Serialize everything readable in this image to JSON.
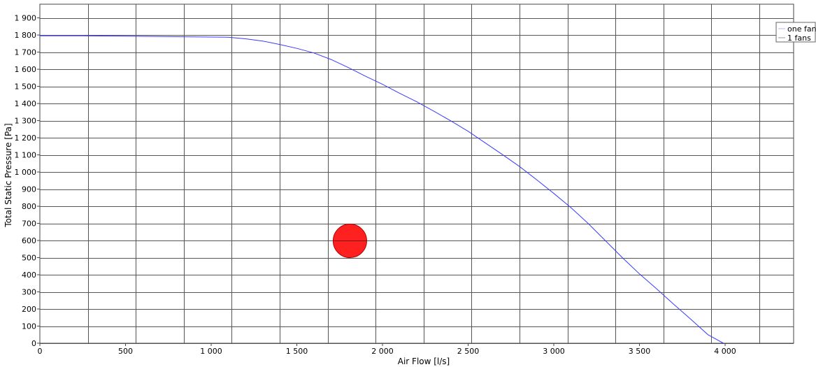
{
  "chart_data": {
    "type": "line",
    "xlabel": "Air Flow [l/s]",
    "ylabel": "Total Static Pressure [Pa]",
    "xlim": [
      0,
      4400
    ],
    "ylim": [
      0,
      1980
    ],
    "x_tick_values": [
      0,
      500,
      1000,
      1500,
      2000,
      2500,
      3000,
      3500,
      4000
    ],
    "x_tick_labels": [
      "0",
      "500",
      "1 000",
      "1 500",
      "2 000",
      "2 500",
      "3 000",
      "3 500",
      "4 000"
    ],
    "y_tick_values": [
      0,
      100,
      200,
      300,
      400,
      500,
      600,
      700,
      800,
      900,
      1000,
      1100,
      1200,
      1300,
      1400,
      1500,
      1600,
      1700,
      1800,
      1900
    ],
    "y_tick_labels": [
      "0",
      "100",
      "200",
      "300",
      "400",
      "500",
      "600",
      "700",
      "800",
      "900",
      "1 000",
      "1 100",
      "1 200",
      "1 300",
      "1 400",
      "1 500",
      "1 600",
      "1 700",
      "1 800",
      "1 900"
    ],
    "x_grid_lines": [
      280,
      560,
      840,
      1120,
      1400,
      1680,
      1960,
      2240,
      2520,
      2800,
      3080,
      3360,
      3640,
      3920,
      4200
    ],
    "grid": true,
    "legend": {
      "placement": "top-right",
      "entries": [
        {
          "label": "one fan",
          "color": "#aeb8ff"
        },
        {
          "label": "1 fans",
          "color": "#999999"
        }
      ]
    },
    "series": [
      {
        "color": "#3a3aff",
        "x": [
          0,
          250,
          500,
          800,
          1000,
          1100,
          1200,
          1300,
          1400,
          1500,
          1600,
          1700,
          1800,
          1900,
          2000,
          2100,
          2200,
          2300,
          2400,
          2500,
          2600,
          2700,
          2800,
          2900,
          3000,
          3100,
          3200,
          3300,
          3400,
          3500,
          3600,
          3700,
          3800,
          3900,
          3990
        ],
        "y": [
          1795,
          1795,
          1793,
          1790,
          1788,
          1787,
          1778,
          1765,
          1745,
          1722,
          1695,
          1657,
          1610,
          1560,
          1512,
          1460,
          1410,
          1355,
          1298,
          1238,
          1170,
          1102,
          1032,
          955,
          875,
          792,
          700,
          600,
          500,
          405,
          318,
          228,
          140,
          50,
          0
        ]
      }
    ],
    "points": [
      {
        "x": 1810,
        "y": 598,
        "color": "#ff2020"
      }
    ]
  }
}
